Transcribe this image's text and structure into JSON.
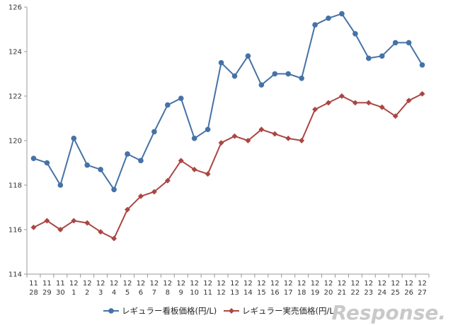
{
  "chart_data": {
    "type": "line",
    "categories": [
      {
        "month": "11",
        "day": "28"
      },
      {
        "month": "11",
        "day": "29"
      },
      {
        "month": "11",
        "day": "30"
      },
      {
        "month": "12",
        "day": "1"
      },
      {
        "month": "12",
        "day": "2"
      },
      {
        "month": "12",
        "day": "3"
      },
      {
        "month": "12",
        "day": "4"
      },
      {
        "month": "12",
        "day": "5"
      },
      {
        "month": "12",
        "day": "6"
      },
      {
        "month": "12",
        "day": "7"
      },
      {
        "month": "12",
        "day": "8"
      },
      {
        "month": "12",
        "day": "9"
      },
      {
        "month": "12",
        "day": "10"
      },
      {
        "month": "12",
        "day": "11"
      },
      {
        "month": "12",
        "day": "12"
      },
      {
        "month": "12",
        "day": "13"
      },
      {
        "month": "12",
        "day": "14"
      },
      {
        "month": "12",
        "day": "15"
      },
      {
        "month": "12",
        "day": "16"
      },
      {
        "month": "12",
        "day": "17"
      },
      {
        "month": "12",
        "day": "18"
      },
      {
        "month": "12",
        "day": "19"
      },
      {
        "month": "12",
        "day": "20"
      },
      {
        "month": "12",
        "day": "21"
      },
      {
        "month": "12",
        "day": "22"
      },
      {
        "month": "12",
        "day": "23"
      },
      {
        "month": "12",
        "day": "24"
      },
      {
        "month": "12",
        "day": "25"
      },
      {
        "month": "12",
        "day": "26"
      },
      {
        "month": "12",
        "day": "27"
      }
    ],
    "series": [
      {
        "name": "レギュラー看板価格(円/L)",
        "color": "#4572a7",
        "marker": "circle",
        "values": [
          119.2,
          119.0,
          118.0,
          120.1,
          118.9,
          118.7,
          117.8,
          119.4,
          119.1,
          120.4,
          121.6,
          121.9,
          120.1,
          120.5,
          123.5,
          122.9,
          123.8,
          122.5,
          123.0,
          123.0,
          122.8,
          125.2,
          125.5,
          125.7,
          124.8,
          123.7,
          123.8,
          124.4,
          124.4,
          123.4
        ]
      },
      {
        "name": "レギュラー実売価格(円/L)",
        "color": "#aa4643",
        "marker": "diamond",
        "values": [
          116.1,
          116.4,
          116.0,
          116.4,
          116.3,
          115.9,
          115.6,
          116.9,
          117.5,
          117.7,
          118.2,
          119.1,
          118.7,
          118.5,
          119.9,
          120.2,
          120.0,
          120.5,
          120.3,
          120.1,
          120.0,
          121.4,
          121.7,
          122.0,
          121.7,
          121.7,
          121.5,
          121.1,
          121.8,
          122.1
        ]
      }
    ],
    "ylim": [
      114,
      126
    ],
    "yticks": [
      114,
      116,
      118,
      120,
      122,
      124,
      126
    ],
    "ytick_labels": [
      "114",
      "116",
      "118",
      "120",
      "122",
      "124",
      "126"
    ],
    "grid": false,
    "legend_position": "bottom-center",
    "title": "",
    "xlabel": "",
    "ylabel": ""
  },
  "watermark": "Response."
}
